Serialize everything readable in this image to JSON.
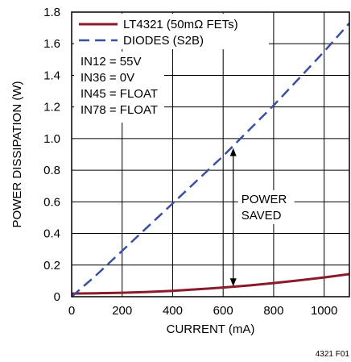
{
  "chart_data": {
    "type": "line",
    "title": "",
    "xlabel": "CURRENT (mA)",
    "ylabel": "POWER DISSIPATION (W)",
    "xlim": [
      0,
      1100
    ],
    "ylim": [
      0,
      1.8
    ],
    "x_ticks": [
      0,
      200,
      400,
      600,
      800,
      1000
    ],
    "y_ticks": [
      0,
      0.2,
      0.4,
      0.6,
      0.8,
      1.0,
      1.2,
      1.4,
      1.6,
      1.8
    ],
    "x_tick_labels": [
      "0",
      "200",
      "400",
      "600",
      "800",
      "1000"
    ],
    "y_tick_labels": [
      "0",
      "0.2",
      "0.4",
      "0.6",
      "0.8",
      "1.0",
      "1.2",
      "1.4",
      "1.6",
      "1.8"
    ],
    "grid": true,
    "legend_position": "top-left",
    "series": [
      {
        "name": "LT4321 (50mΩ FETs)",
        "color": "#8b1a2b",
        "style": "solid",
        "x": [
          0,
          100,
          200,
          300,
          400,
          500,
          600,
          700,
          800,
          900,
          1000,
          1100
        ],
        "y": [
          0.02,
          0.022,
          0.025,
          0.03,
          0.037,
          0.047,
          0.058,
          0.071,
          0.086,
          0.103,
          0.122,
          0.143
        ]
      },
      {
        "name": "DIODES (S2B)",
        "color": "#3a4fa0",
        "style": "dashed",
        "x": [
          0,
          100,
          200,
          300,
          400,
          500,
          600,
          700,
          800,
          900,
          1000,
          1100
        ],
        "y": [
          0,
          0.14,
          0.29,
          0.44,
          0.59,
          0.74,
          0.89,
          1.05,
          1.21,
          1.38,
          1.55,
          1.73
        ]
      }
    ],
    "conditions": [
      "IN12 = 55V",
      "IN36 = 0V",
      "IN45 = FLOAT",
      "IN78 = FLOAT"
    ],
    "annotation": {
      "lines": [
        "POWER",
        "SAVED"
      ],
      "arrow_x": 640,
      "arrow_y_top": 0.94,
      "arrow_y_bottom": 0.065
    },
    "figure_id": "4321 F01"
  }
}
